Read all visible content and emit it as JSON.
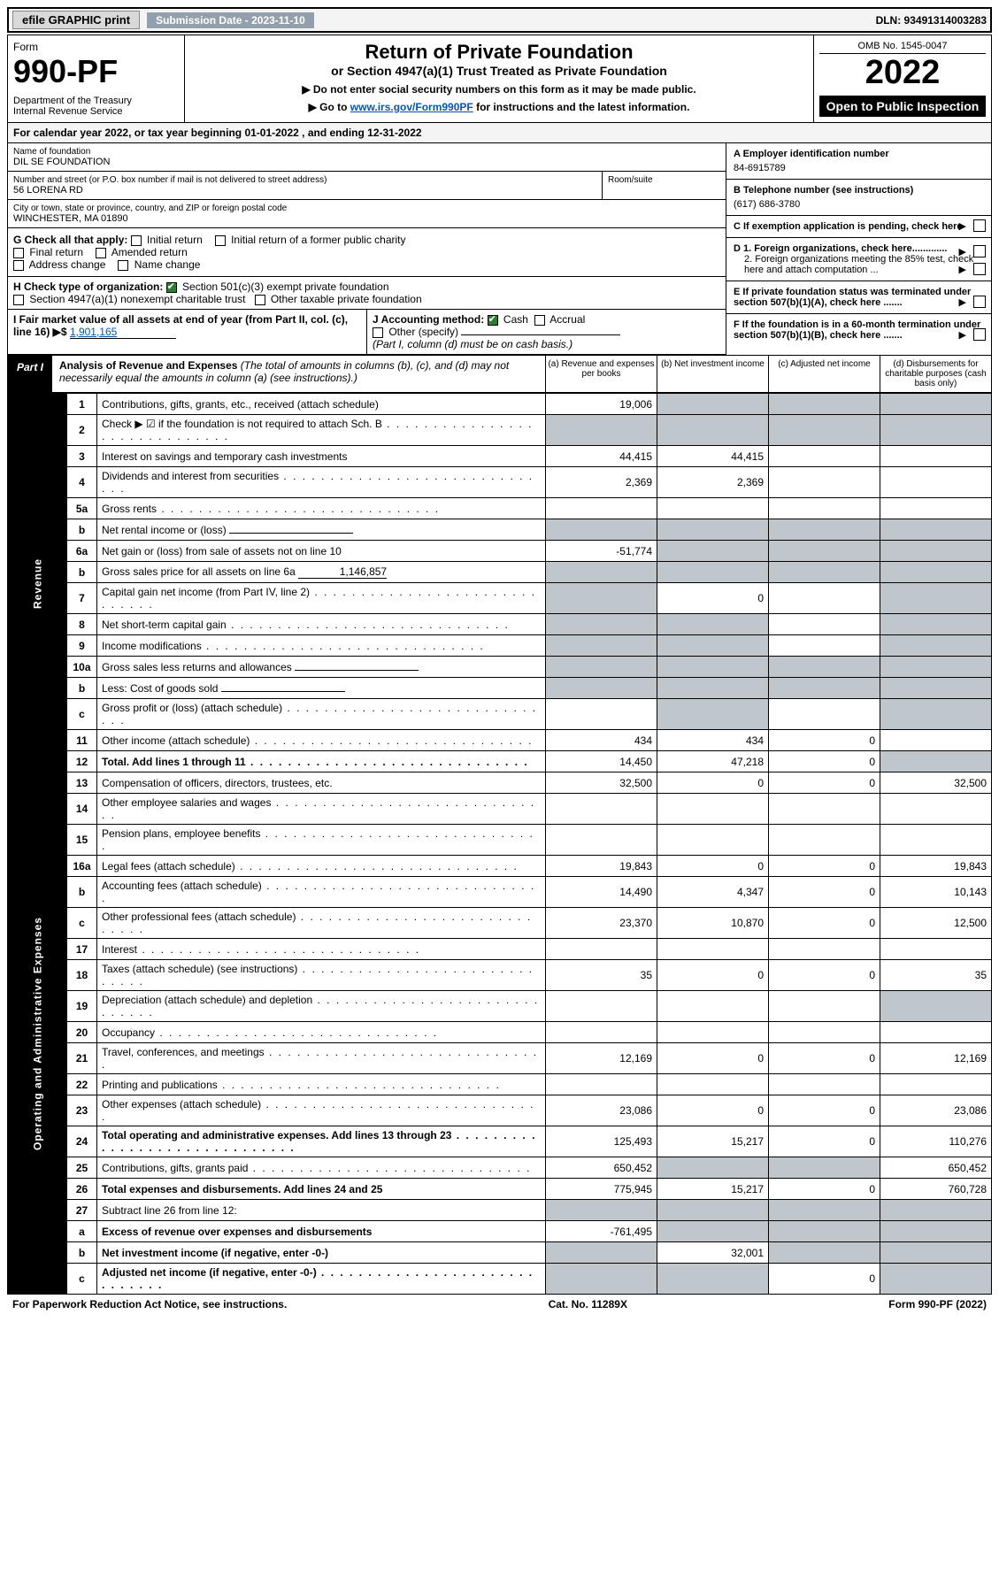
{
  "topbar": {
    "efile": "efile GRAPHIC print",
    "subdate_lbl": "Submission Date - 2023-11-10",
    "dln": "DLN: 93491314003283"
  },
  "header": {
    "form_word": "Form",
    "form_num": "990-PF",
    "dept": "Department of the Treasury\nInternal Revenue Service",
    "title": "Return of Private Foundation",
    "subtitle": "or Section 4947(a)(1) Trust Treated as Private Foundation",
    "arrow1": "▶ Do not enter social security numbers on this form as it may be made public.",
    "arrow2_pre": "▶ Go to ",
    "arrow2_link": "www.irs.gov/Form990PF",
    "arrow2_post": " for instructions and the latest information.",
    "omb": "OMB No. 1545-0047",
    "year": "2022",
    "open": "Open to Public Inspection"
  },
  "calrow": "For calendar year 2022, or tax year beginning 01-01-2022            , and ending 12-31-2022",
  "info": {
    "name_lbl": "Name of foundation",
    "name_val": "DIL SE FOUNDATION",
    "addr_lbl": "Number and street (or P.O. box number if mail is not delivered to street address)",
    "addr_val": "56 LORENA RD",
    "suite_lbl": "Room/suite",
    "city_lbl": "City or town, state or province, country, and ZIP or foreign postal code",
    "city_val": "WINCHESTER, MA  01890",
    "a_lbl": "A Employer identification number",
    "a_val": "84-6915789",
    "b_lbl": "B Telephone number (see instructions)",
    "b_val": "(617) 686-3780",
    "c_lbl": "C If exemption application is pending, check here",
    "d1": "D 1. Foreign organizations, check here.............",
    "d2": "2. Foreign organizations meeting the 85% test, check here and attach computation ...",
    "e": "E  If private foundation status was terminated under section 507(b)(1)(A), check here .......",
    "f": "F  If the foundation is in a 60-month termination under section 507(b)(1)(B), check here ......."
  },
  "gcheck": {
    "lbl": "G Check all that apply:",
    "opts": [
      "Initial return",
      "Initial return of a former public charity",
      "Final return",
      "Amended return",
      "Address change",
      "Name change"
    ]
  },
  "hcheck": {
    "lbl": "H Check type of organization:",
    "opt1": "Section 501(c)(3) exempt private foundation",
    "opt2": "Section 4947(a)(1) nonexempt charitable trust",
    "opt3": "Other taxable private foundation"
  },
  "i_row": {
    "i_lbl": "I Fair market value of all assets at end of year (from Part II, col. (c), line 16) ▶$",
    "i_val": "1,901,165",
    "j_lbl": "J Accounting method:",
    "j_cash": "Cash",
    "j_acc": "Accrual",
    "j_other": "Other (specify)",
    "j_note": "(Part I, column (d) must be on cash basis.)"
  },
  "part1": {
    "tag": "Part I",
    "title": "Analysis of Revenue and Expenses",
    "note": " (The total of amounts in columns (b), (c), and (d) may not necessarily equal the amounts in column (a) (see instructions).)",
    "col_a": "(a)   Revenue and expenses per books",
    "col_b": "(b)   Net investment income",
    "col_c": "(c)   Adjusted net income",
    "col_d": "(d)   Disbursements for charitable purposes (cash basis only)"
  },
  "sidelabels": {
    "rev": "Revenue",
    "exp": "Operating and Administrative Expenses"
  },
  "rows": [
    {
      "n": "1",
      "d": "Contributions, gifts, grants, etc., received (attach schedule)",
      "a": "19,006",
      "shade": [
        "b",
        "c",
        "d"
      ]
    },
    {
      "n": "2",
      "d": "Check ▶ ☑ if the foundation is not required to attach Sch. B",
      "dots": true,
      "shade": [
        "a",
        "b",
        "c",
        "d"
      ],
      "bold_not": true
    },
    {
      "n": "3",
      "d": "Interest on savings and temporary cash investments",
      "a": "44,415",
      "b": "44,415"
    },
    {
      "n": "4",
      "d": "Dividends and interest from securities",
      "dots": true,
      "a": "2,369",
      "b": "2,369"
    },
    {
      "n": "5a",
      "d": "Gross rents",
      "dots": true
    },
    {
      "n": "b",
      "d": "Net rental income or (loss)",
      "inline": true,
      "shade": [
        "a",
        "b",
        "c",
        "d"
      ]
    },
    {
      "n": "6a",
      "d": "Net gain or (loss) from sale of assets not on line 10",
      "a": "-51,774",
      "shade": [
        "b",
        "c",
        "d"
      ]
    },
    {
      "n": "b",
      "d": "Gross sales price for all assets on line 6a",
      "inline": true,
      "inline_val": "1,146,857",
      "shade": [
        "a",
        "b",
        "c",
        "d"
      ]
    },
    {
      "n": "7",
      "d": "Capital gain net income (from Part IV, line 2)",
      "dots": true,
      "shade": [
        "a",
        "d"
      ],
      "b": "0"
    },
    {
      "n": "8",
      "d": "Net short-term capital gain",
      "dots": true,
      "shade": [
        "a",
        "b",
        "d"
      ]
    },
    {
      "n": "9",
      "d": "Income modifications",
      "dots": true,
      "shade": [
        "a",
        "b",
        "d"
      ]
    },
    {
      "n": "10a",
      "d": "Gross sales less returns and allowances",
      "inline": true,
      "shade": [
        "a",
        "b",
        "c",
        "d"
      ]
    },
    {
      "n": "b",
      "d": "Less: Cost of goods sold",
      "dots": true,
      "inline": true,
      "shade": [
        "a",
        "b",
        "c",
        "d"
      ]
    },
    {
      "n": "c",
      "d": "Gross profit or (loss) (attach schedule)",
      "dots": true,
      "shade": [
        "b",
        "d"
      ]
    },
    {
      "n": "11",
      "d": "Other income (attach schedule)",
      "dots": true,
      "a": "434",
      "b": "434",
      "c": "0"
    },
    {
      "n": "12",
      "d": "Total. Add lines 1 through 11",
      "dots": true,
      "bold": true,
      "a": "14,450",
      "b": "47,218",
      "c": "0",
      "shade": [
        "d"
      ]
    },
    {
      "n": "13",
      "d": "Compensation of officers, directors, trustees, etc.",
      "a": "32,500",
      "b": "0",
      "c": "0",
      "dd": "32,500"
    },
    {
      "n": "14",
      "d": "Other employee salaries and wages",
      "dots": true
    },
    {
      "n": "15",
      "d": "Pension plans, employee benefits",
      "dots": true
    },
    {
      "n": "16a",
      "d": "Legal fees (attach schedule)",
      "dots": true,
      "a": "19,843",
      "b": "0",
      "c": "0",
      "dd": "19,843"
    },
    {
      "n": "b",
      "d": "Accounting fees (attach schedule)",
      "dots": true,
      "a": "14,490",
      "b": "4,347",
      "c": "0",
      "dd": "10,143"
    },
    {
      "n": "c",
      "d": "Other professional fees (attach schedule)",
      "dots": true,
      "a": "23,370",
      "b": "10,870",
      "c": "0",
      "dd": "12,500"
    },
    {
      "n": "17",
      "d": "Interest",
      "dots": true
    },
    {
      "n": "18",
      "d": "Taxes (attach schedule) (see instructions)",
      "dots": true,
      "a": "35",
      "b": "0",
      "c": "0",
      "dd": "35"
    },
    {
      "n": "19",
      "d": "Depreciation (attach schedule) and depletion",
      "dots": true,
      "shade": [
        "d"
      ]
    },
    {
      "n": "20",
      "d": "Occupancy",
      "dots": true
    },
    {
      "n": "21",
      "d": "Travel, conferences, and meetings",
      "dots": true,
      "a": "12,169",
      "b": "0",
      "c": "0",
      "dd": "12,169"
    },
    {
      "n": "22",
      "d": "Printing and publications",
      "dots": true
    },
    {
      "n": "23",
      "d": "Other expenses (attach schedule)",
      "dots": true,
      "a": "23,086",
      "b": "0",
      "c": "0",
      "dd": "23,086"
    },
    {
      "n": "24",
      "d": "Total operating and administrative expenses. Add lines 13 through 23",
      "dots": true,
      "bold": true,
      "a": "125,493",
      "b": "15,217",
      "c": "0",
      "dd": "110,276"
    },
    {
      "n": "25",
      "d": "Contributions, gifts, grants paid",
      "dots": true,
      "a": "650,452",
      "shade": [
        "b",
        "c"
      ],
      "dd": "650,452"
    },
    {
      "n": "26",
      "d": "Total expenses and disbursements. Add lines 24 and 25",
      "bold": true,
      "a": "775,945",
      "b": "15,217",
      "c": "0",
      "dd": "760,728"
    },
    {
      "n": "27",
      "d": "Subtract line 26 from line 12:",
      "shade": [
        "a",
        "b",
        "c",
        "d"
      ]
    },
    {
      "n": "a",
      "d": "Excess of revenue over expenses and disbursements",
      "bold": true,
      "a": "-761,495",
      "shade": [
        "b",
        "c",
        "d"
      ]
    },
    {
      "n": "b",
      "d": "Net investment income (if negative, enter -0-)",
      "bold": true,
      "shade": [
        "a",
        "c",
        "d"
      ],
      "b": "32,001"
    },
    {
      "n": "c",
      "d": "Adjusted net income (if negative, enter -0-)",
      "bold": true,
      "dots": true,
      "shade": [
        "a",
        "b",
        "d"
      ],
      "c": "0"
    }
  ],
  "footer": {
    "left": "For Paperwork Reduction Act Notice, see instructions.",
    "mid": "Cat. No. 11289X",
    "right": "Form 990-PF (2022)"
  },
  "revenue_end_idx": 15
}
